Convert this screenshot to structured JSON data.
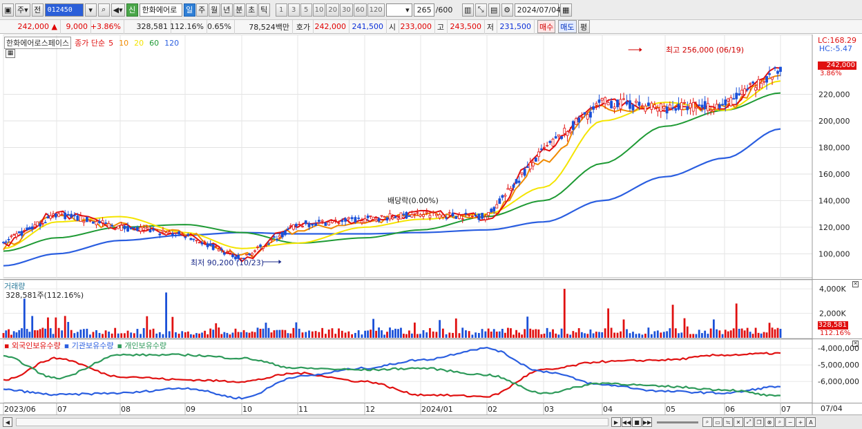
{
  "toolbar": {
    "market_label": "주",
    "prev_label": "전",
    "stock_code": "012450",
    "stock_name": "한화에어로",
    "new_badge": "신",
    "periods": [
      "일",
      "주",
      "월",
      "년",
      "분",
      "초",
      "틱"
    ],
    "selected_period": "일",
    "minute_steps": [
      "1",
      "3",
      "5",
      "10",
      "20",
      "30",
      "60",
      "120"
    ],
    "count": "265",
    "count_total": "/600",
    "date": "2024/07/04"
  },
  "quote": {
    "price": "242,000",
    "change": "9,000",
    "change_pct": "+3.86%",
    "volume": "328,581",
    "volume_ratio": "112.16%",
    "turnover": "0.65%",
    "amount": "78,524백만",
    "ask_label": "호가",
    "ask": "242,000",
    "bid": "241,500",
    "open_label": "시",
    "open": "233,000",
    "high_label": "고",
    "high": "243,500",
    "low_label": "저",
    "low": "231,500",
    "buy_label": "매수",
    "sell_label": "매도",
    "eval_label": "평"
  },
  "price_panel": {
    "stock_full_name": "한화에어로스페이스",
    "legend_prefix": "종가 단순",
    "ma_periods": [
      "5",
      "10",
      "20",
      "60",
      "120"
    ],
    "ma_colors": [
      "#e01010",
      "#f08a00",
      "#f4e400",
      "#1e9a34",
      "#2a5ee0"
    ],
    "lc_label": "LC:168.29",
    "hc_label": "HC:-5.47",
    "current_tag": "242,000",
    "current_pct": "3.86%",
    "annotation_high": "최고 256,000 (06/19)",
    "annotation_low": "최저 90,200 (10/23)",
    "annotation_div": "배당락(0.00%)"
  },
  "volume_panel": {
    "title": "거래량",
    "subtitle": "328,581주(112.16%)",
    "tag_value": "328,581",
    "tag_pct": "112.16%"
  },
  "holding_panel": {
    "legend": [
      "외국인보유수량",
      "기관보유수량",
      "개인보유수량"
    ],
    "colors": [
      "#e01010",
      "#2a5ee0",
      "#2e9a5a"
    ]
  },
  "date_axis": {
    "labels": [
      "2023/06",
      "07",
      "08",
      "09",
      "10",
      "11",
      "12",
      "2024/01",
      "02",
      "03",
      "04",
      "05",
      "06",
      "07"
    ],
    "right_label": "07/04"
  },
  "chart_data": [
    {
      "type": "line",
      "title": "",
      "y_ticks": [
        100000,
        120000,
        140000,
        160000,
        180000,
        200000,
        220000
      ],
      "ylim": [
        82000,
        265000
      ],
      "x": [
        "2023-06",
        "2023-07",
        "2023-08",
        "2023-09",
        "2023-10",
        "2023-11",
        "2023-12",
        "2024-01",
        "2024-02",
        "2024-03",
        "2024-04",
        "2024-05",
        "2024-06",
        "2024-07"
      ],
      "series": [
        {
          "name": "5",
          "values": [
            108000,
            130000,
            120000,
            114000,
            96000,
            122000,
            126000,
            130000,
            128000,
            178000,
            214000,
            210000,
            212000,
            238000
          ]
        },
        {
          "name": "10",
          "values": [
            106000,
            128000,
            121000,
            115000,
            98000,
            118000,
            124000,
            129000,
            128000,
            170000,
            210000,
            210000,
            210000,
            236000
          ]
        },
        {
          "name": "20",
          "values": [
            104000,
            124000,
            128000,
            116000,
            104000,
            108000,
            120000,
            126000,
            130000,
            150000,
            200000,
            214000,
            208000,
            230000
          ]
        },
        {
          "name": "60",
          "values": [
            102000,
            112000,
            120000,
            122000,
            116000,
            108000,
            112000,
            118000,
            128000,
            140000,
            168000,
            196000,
            208000,
            221000
          ]
        },
        {
          "name": "120",
          "values": [
            91000,
            100000,
            110000,
            114000,
            116000,
            115000,
            115000,
            116000,
            118000,
            124000,
            140000,
            158000,
            172000,
            194000
          ]
        }
      ],
      "high": {
        "date": "06/19",
        "value": 256000
      },
      "low": {
        "date": "10/23",
        "value": 90200
      }
    },
    {
      "type": "bar",
      "title": "거래량",
      "y_ticks": [
        2000000,
        4000000
      ],
      "ylim": [
        0,
        4400000
      ],
      "last_value": 328581
    },
    {
      "type": "line",
      "title": "",
      "y_ticks": [
        -4000000,
        -5000000,
        -6000000
      ],
      "ylim": [
        -7200000,
        -3700000
      ],
      "x": [
        "2023-06",
        "2023-07",
        "2023-08",
        "2023-09",
        "2023-10",
        "2023-11",
        "2023-12",
        "2024-01",
        "2024-02",
        "2024-03",
        "2024-04",
        "2024-05",
        "2024-06",
        "2024-07"
      ],
      "series": [
        {
          "name": "외국인보유수량",
          "values": [
            -5900000,
            -4600000,
            -5700000,
            -5900000,
            -6000000,
            -5500000,
            -6000000,
            -6800000,
            -6900000,
            -5300000,
            -4800000,
            -4700000,
            -4400000,
            -4300000
          ]
        },
        {
          "name": "기관보유수량",
          "values": [
            -6500000,
            -6800000,
            -6700000,
            -6400000,
            -7000000,
            -5700000,
            -5200000,
            -4700000,
            -4000000,
            -5400000,
            -6200000,
            -6600000,
            -6700000,
            -6300000
          ]
        },
        {
          "name": "개인보유수량",
          "values": [
            -4500000,
            -5800000,
            -4400000,
            -4400000,
            -4600000,
            -5200000,
            -5300000,
            -5200000,
            -5600000,
            -6700000,
            -6100000,
            -6300000,
            -6500000,
            -6900000
          ]
        }
      ]
    }
  ]
}
